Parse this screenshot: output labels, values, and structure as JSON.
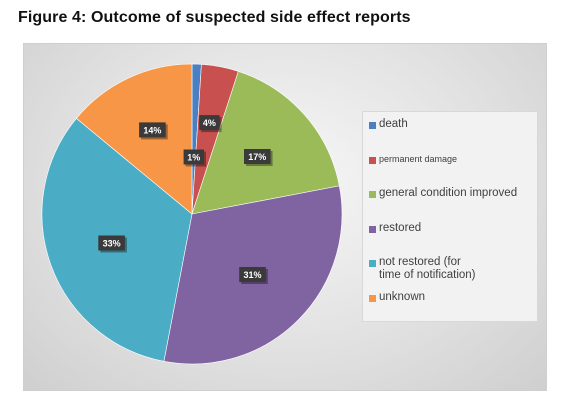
{
  "figure_title": "Figure 4: Outcome of suspected side effect reports",
  "chart_data": {
    "type": "pie",
    "title": "",
    "slices": [
      {
        "label": "death",
        "value": 1,
        "display": "1%",
        "color": "#4a7fc1"
      },
      {
        "label": "permanent damage",
        "value": 4,
        "display": "4%",
        "color": "#c8504e"
      },
      {
        "label": "general condition improved",
        "value": 17,
        "display": "17%",
        "color": "#9bbb59"
      },
      {
        "label": "restored",
        "value": 31,
        "display": "31%",
        "color": "#8064a2"
      },
      {
        "label": "not restored (for\ntime of notification)",
        "value": 33,
        "display": "33%",
        "color": "#4bacc6"
      },
      {
        "label": "unknown",
        "value": 14,
        "display": "14%",
        "color": "#f79646"
      }
    ],
    "start_angle_deg": 0,
    "direction": "clockwise",
    "legend_position": "right"
  }
}
